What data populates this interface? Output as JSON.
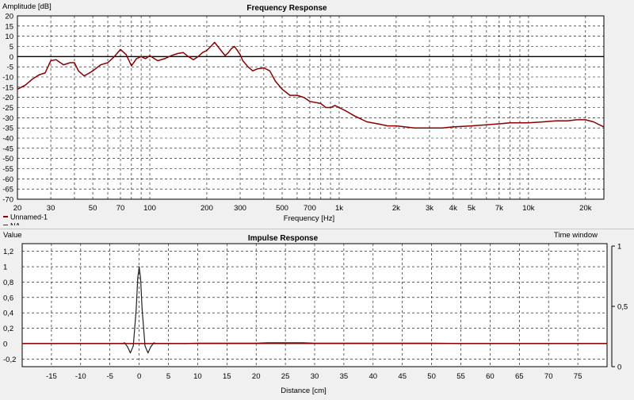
{
  "charts": [
    {
      "id": "frequency-response",
      "type": "line",
      "title": "Frequency Response",
      "ylabel": "Amplitude [dB]",
      "xlabel": "Frequency [Hz]",
      "xscale": "log",
      "xlim": [
        20,
        25000
      ],
      "ylim": [
        -70,
        20
      ],
      "grid": true,
      "y_ticks": [
        "20",
        "15",
        "10",
        "5",
        "0",
        "-5",
        "-10",
        "-15",
        "-20",
        "-25",
        "-30",
        "-35",
        "-40",
        "-45",
        "-50",
        "-55",
        "-60",
        "-65",
        "-70"
      ],
      "y_tick_values": [
        20,
        15,
        10,
        5,
        0,
        -5,
        -10,
        -15,
        -20,
        -25,
        -30,
        -35,
        -40,
        -45,
        -50,
        -55,
        -60,
        -65,
        -70
      ],
      "x_ticks": [
        "20",
        "30",
        "50",
        "70",
        "100",
        "200",
        "300",
        "500",
        "700",
        "1k",
        "2k",
        "3k",
        "4k",
        "5k",
        "7k",
        "10k",
        "20k"
      ],
      "x_tick_values": [
        20,
        30,
        50,
        70,
        100,
        200,
        300,
        500,
        700,
        1000,
        2000,
        3000,
        4000,
        5000,
        7000,
        10000,
        20000
      ],
      "reference_line_y": 0,
      "legend": [
        {
          "name": "Unnamed-1",
          "color": "#8b0000"
        },
        {
          "name": "NA",
          "color": "#333333"
        }
      ],
      "series": [
        {
          "name": "Unnamed-1",
          "color": "#8b0000",
          "x": [
            20,
            22,
            24,
            26,
            28,
            30,
            32,
            35,
            38,
            40,
            42,
            45,
            48,
            50,
            55,
            60,
            65,
            70,
            75,
            80,
            85,
            90,
            95,
            100,
            110,
            120,
            130,
            140,
            150,
            160,
            170,
            180,
            190,
            200,
            210,
            220,
            240,
            250,
            260,
            270,
            280,
            290,
            300,
            310,
            330,
            350,
            370,
            400,
            430,
            460,
            500,
            550,
            600,
            650,
            700,
            800,
            850,
            900,
            950,
            1000,
            1100,
            1200,
            1400,
            1600,
            1800,
            2000,
            2500,
            3000,
            3500,
            4000,
            5000,
            6000,
            7000,
            8000,
            10000,
            12000,
            14000,
            16000,
            18000,
            20000,
            22000,
            25000
          ],
          "y": [
            -16,
            -14,
            -11,
            -9,
            -8,
            -2,
            -1.5,
            -4,
            -3,
            -3,
            -7,
            -9.5,
            -8,
            -7,
            -4,
            -3,
            0,
            3.5,
            1,
            -4.5,
            -1,
            0,
            -1,
            0.5,
            -2,
            -1,
            0.5,
            1.5,
            2,
            0,
            -1.5,
            0,
            2,
            3,
            5,
            7,
            2.5,
            0.5,
            2,
            4,
            5,
            3,
            1,
            -2,
            -5,
            -7,
            -6,
            -5.5,
            -7,
            -12,
            -16,
            -19,
            -19,
            -20,
            -22,
            -23,
            -25,
            -25,
            -24,
            -25,
            -27,
            -29,
            -32,
            -33,
            -34,
            -34,
            -35,
            -35,
            -35,
            -34.5,
            -34,
            -33.5,
            -33,
            -32.5,
            -32.5,
            -32,
            -31.5,
            -31.5,
            -31,
            -31,
            -32,
            -34.5
          ]
        }
      ]
    },
    {
      "id": "impulse-response",
      "type": "line",
      "title": "Impulse Response",
      "ylabel": "Value",
      "xlabel": "Distance [cm]",
      "right_axis_label": "Time window",
      "xlim": [
        -20,
        80
      ],
      "ylim": [
        -0.3,
        1.3
      ],
      "grid": true,
      "y_ticks": [
        "1,2",
        "1",
        "0,8",
        "0,6",
        "0,4",
        "0,2",
        "0",
        "-0,2"
      ],
      "y_tick_values": [
        1.2,
        1,
        0.8,
        0.6,
        0.4,
        0.2,
        0,
        -0.2
      ],
      "x_ticks": [
        "-15",
        "-10",
        "-5",
        "0",
        "5",
        "10",
        "15",
        "20",
        "25",
        "30",
        "35",
        "40",
        "45",
        "50",
        "55",
        "60",
        "65",
        "70",
        "75"
      ],
      "x_tick_values": [
        -15,
        -10,
        -5,
        0,
        5,
        10,
        15,
        20,
        25,
        30,
        35,
        40,
        45,
        50,
        55,
        60,
        65,
        70,
        75
      ],
      "right_ticks": [
        "1",
        "0,5",
        "0"
      ],
      "right_tick_values": [
        1,
        0.5,
        0
      ],
      "right_ylim": [
        0,
        1.02
      ],
      "series": [
        {
          "name": "NA",
          "color": "#222222",
          "x": [
            -20,
            -3,
            -2.5,
            -2,
            -1.5,
            -1,
            -0.5,
            -0.25,
            0,
            0.25,
            0.5,
            1,
            1.5,
            2,
            2.5,
            3,
            80
          ],
          "y": [
            0,
            0,
            0.01,
            -0.04,
            -0.12,
            -0.03,
            0.45,
            0.85,
            1,
            0.85,
            0.45,
            -0.03,
            -0.12,
            -0.04,
            0.01,
            0,
            0
          ]
        },
        {
          "name": "Unnamed-1",
          "color": "#8b0000",
          "x": [
            -20,
            -5,
            0,
            5,
            8,
            10,
            15,
            20,
            22,
            25,
            28,
            30,
            35,
            40,
            45,
            50,
            55,
            60,
            65,
            70,
            75,
            80
          ],
          "y": [
            0,
            0,
            0,
            0,
            0,
            0.005,
            0.005,
            0.005,
            0.01,
            0.01,
            0.01,
            0.005,
            0.005,
            0.005,
            0.005,
            0.005,
            0,
            0,
            0,
            0,
            0,
            0
          ]
        }
      ]
    }
  ]
}
